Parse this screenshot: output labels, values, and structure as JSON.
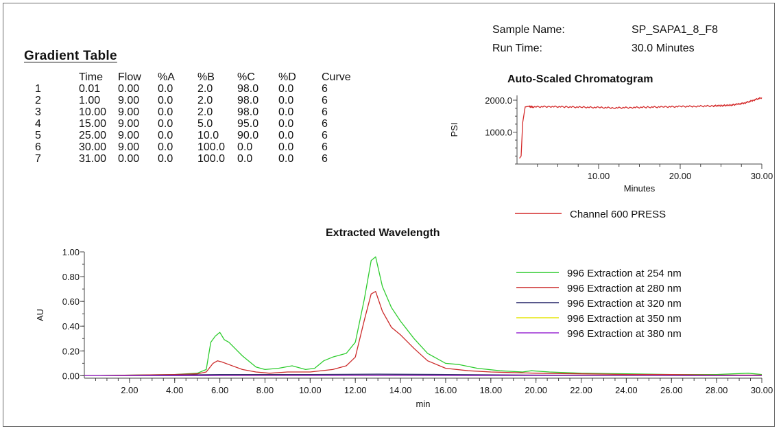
{
  "sample_info": {
    "sample_name_label": "Sample Name:",
    "sample_name_value": "SP_SAPA1_8_F8",
    "run_time_label": "Run Time:",
    "run_time_value": "30.0 Minutes"
  },
  "gradient_table": {
    "title": "Gradient Table",
    "headers": [
      "",
      "Time",
      "Flow",
      "%A",
      "%B",
      "%C",
      "%D",
      "Curve"
    ],
    "rows": [
      [
        "1",
        "0.01",
        "0.00",
        "0.0",
        "2.0",
        "98.0",
        "0.0",
        "6"
      ],
      [
        "2",
        "1.00",
        "9.00",
        "0.0",
        "2.0",
        "98.0",
        "0.0",
        "6"
      ],
      [
        "3",
        "10.00",
        "9.00",
        "0.0",
        "2.0",
        "98.0",
        "0.0",
        "6"
      ],
      [
        "4",
        "15.00",
        "9.00",
        "0.0",
        "5.0",
        "95.0",
        "0.0",
        "6"
      ],
      [
        "5",
        "25.00",
        "9.00",
        "0.0",
        "10.0",
        "90.0",
        "0.0",
        "6"
      ],
      [
        "6",
        "30.00",
        "9.00",
        "0.0",
        "100.0",
        "0.0",
        "0.0",
        "6"
      ],
      [
        "7",
        "31.00",
        "0.00",
        "0.0",
        "100.0",
        "0.0",
        "0.0",
        "6"
      ]
    ]
  },
  "chart_data": [
    {
      "type": "line",
      "title": "Auto-Scaled Chromatogram",
      "xlabel": "Minutes",
      "ylabel": "PSI",
      "xlim": [
        0,
        30
      ],
      "ylim": [
        0,
        2150
      ],
      "x_ticks": [
        "10.00",
        "20.00",
        "30.00"
      ],
      "y_ticks": [
        "1000.0",
        "2000.0"
      ],
      "legend_position": "bottom",
      "series": [
        {
          "name": "Channel 600 PRESS",
          "color": "#d42a2a",
          "x": [
            0.3,
            0.5,
            0.7,
            1.0,
            1.5,
            2,
            4,
            6,
            8,
            10,
            12,
            14,
            16,
            18,
            20,
            22,
            24,
            25,
            26,
            27,
            28,
            29,
            30
          ],
          "y": [
            180,
            250,
            1300,
            1800,
            1800,
            1790,
            1800,
            1790,
            1780,
            1770,
            1760,
            1770,
            1780,
            1790,
            1800,
            1810,
            1820,
            1830,
            1840,
            1870,
            1920,
            2000,
            2080
          ]
        }
      ]
    },
    {
      "type": "line",
      "title": "Extracted Wavelength",
      "xlabel": "min",
      "ylabel": "AU",
      "xlim": [
        0,
        30
      ],
      "ylim": [
        -0.02,
        1.0
      ],
      "x_ticks": [
        "2.00",
        "4.00",
        "6.00",
        "8.00",
        "10.00",
        "12.00",
        "14.00",
        "16.00",
        "18.00",
        "20.00",
        "22.00",
        "24.00",
        "26.00",
        "28.00",
        "30.00"
      ],
      "y_ticks": [
        "0.00",
        "0.20",
        "0.40",
        "0.60",
        "0.80",
        "1.00"
      ],
      "legend_position": "right",
      "series": [
        {
          "name": "996 Extraction at 254 nm",
          "color": "#2ecc2e",
          "x": [
            0,
            4,
            5,
            5.4,
            5.6,
            5.8,
            6.0,
            6.2,
            6.4,
            7.0,
            7.6,
            8.0,
            8.6,
            9.2,
            9.8,
            10.2,
            10.6,
            11.0,
            11.6,
            12.0,
            12.4,
            12.7,
            12.9,
            13.2,
            13.6,
            14.0,
            14.6,
            15.2,
            16.0,
            16.6,
            17.4,
            18.4,
            19.4,
            19.8,
            20.6,
            22,
            24,
            26,
            28,
            29.4,
            30
          ],
          "y": [
            0.0,
            0.01,
            0.02,
            0.05,
            0.27,
            0.32,
            0.35,
            0.29,
            0.27,
            0.16,
            0.07,
            0.05,
            0.06,
            0.08,
            0.05,
            0.06,
            0.12,
            0.15,
            0.18,
            0.27,
            0.62,
            0.93,
            0.96,
            0.72,
            0.55,
            0.44,
            0.3,
            0.18,
            0.1,
            0.09,
            0.06,
            0.04,
            0.03,
            0.04,
            0.03,
            0.02,
            0.015,
            0.01,
            0.01,
            0.02,
            0.01
          ]
        },
        {
          "name": "996 Extraction at 280 nm",
          "color": "#cc2a2a",
          "x": [
            0,
            4,
            5,
            5.4,
            5.7,
            5.9,
            6.1,
            6.4,
            7.0,
            7.6,
            8.2,
            9.0,
            10.0,
            11.0,
            11.6,
            12.0,
            12.4,
            12.7,
            12.9,
            13.2,
            13.6,
            14.0,
            14.6,
            15.2,
            16.0,
            17.0,
            18.0,
            20,
            22,
            24,
            26,
            28,
            30
          ],
          "y": [
            0.0,
            0.01,
            0.015,
            0.03,
            0.1,
            0.12,
            0.11,
            0.09,
            0.05,
            0.03,
            0.02,
            0.03,
            0.03,
            0.05,
            0.08,
            0.15,
            0.45,
            0.66,
            0.68,
            0.52,
            0.39,
            0.33,
            0.22,
            0.12,
            0.06,
            0.04,
            0.03,
            0.02,
            0.015,
            0.01,
            0.01,
            0.005,
            0.005
          ]
        },
        {
          "name": "996 Extraction at 320 nm",
          "color": "#222266",
          "x": [
            0,
            4,
            6,
            10,
            13,
            16,
            20,
            25,
            30
          ],
          "y": [
            0.0,
            0.005,
            0.01,
            0.01,
            0.012,
            0.01,
            0.005,
            0.003,
            0.002
          ]
        },
        {
          "name": "996 Extraction at 350 nm",
          "color": "#e6e60a",
          "x": [
            0,
            10,
            20,
            30
          ],
          "y": [
            0.0,
            0.002,
            0.002,
            0.001
          ]
        },
        {
          "name": "996 Extraction at 380 nm",
          "color": "#9a2ad4",
          "x": [
            0,
            10,
            20,
            30
          ],
          "y": [
            0.0,
            0.001,
            0.001,
            0.0
          ]
        }
      ]
    }
  ]
}
